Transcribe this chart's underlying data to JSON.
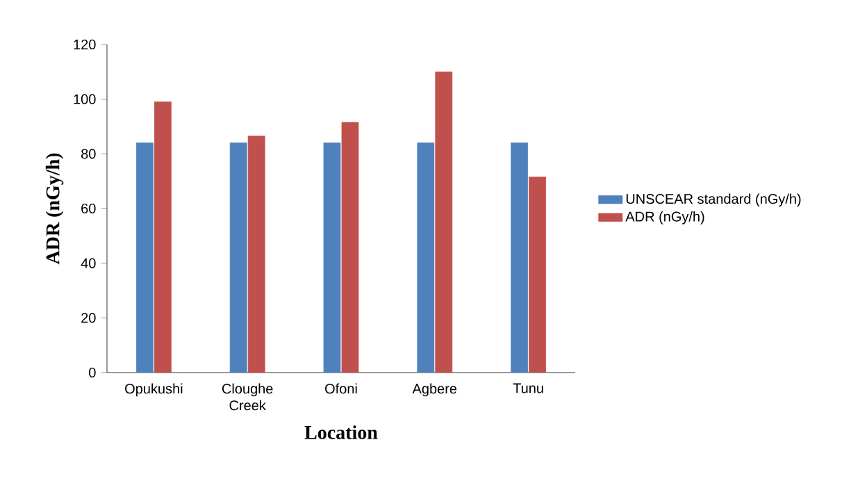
{
  "chart_data": {
    "type": "bar",
    "xlabel": "Location",
    "ylabel": "ADR (nGy/h)",
    "categories": [
      "Opukushi",
      "Cloughe Creek",
      "Ofoni",
      "Agbere",
      "Tunu"
    ],
    "series": [
      {
        "name": "UNSCEAR standard (nGy/h)",
        "color": "#4f81bd",
        "values": [
          84,
          84,
          84,
          84,
          84
        ]
      },
      {
        "name": "ADR (nGy/h)",
        "color": "#c0504d",
        "values": [
          99,
          86.5,
          91.5,
          110,
          71.5
        ]
      }
    ],
    "ylim": [
      0,
      120
    ],
    "yticks": [
      0,
      20,
      40,
      60,
      80,
      100,
      120
    ],
    "legend": "right"
  }
}
